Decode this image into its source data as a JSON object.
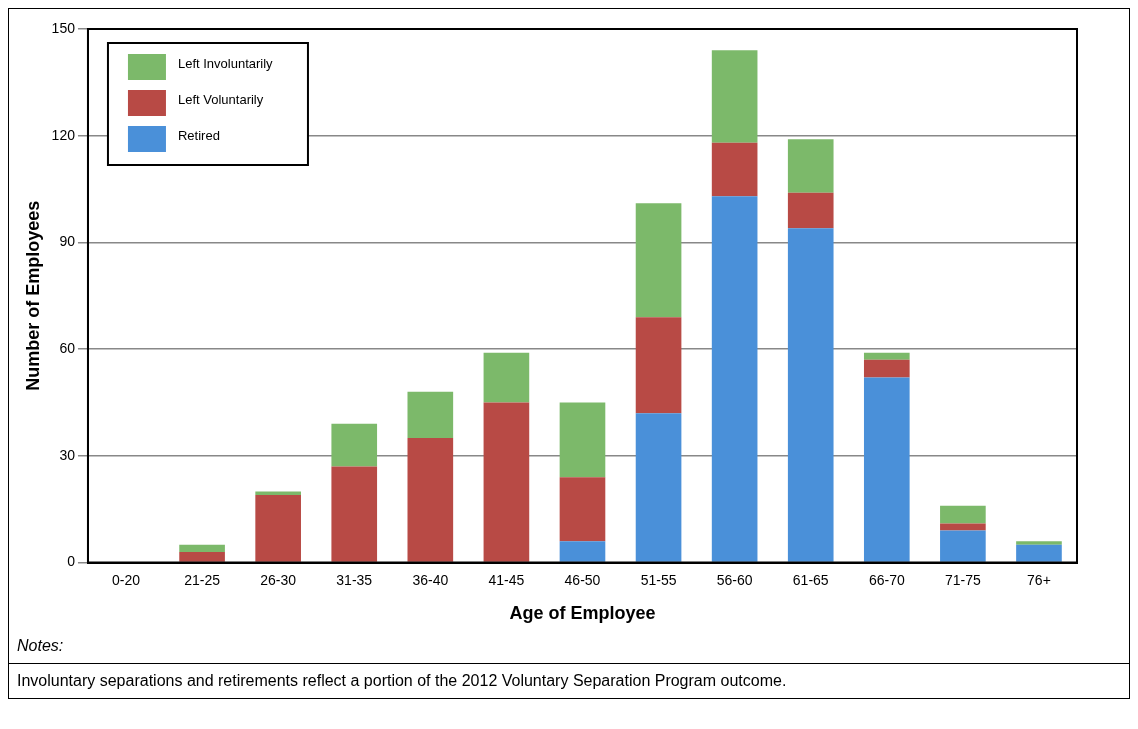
{
  "chart_data": {
    "type": "bar",
    "stacked": true,
    "xlabel": "Age of Employee",
    "ylabel": "Number of Employees",
    "categories": [
      "0-20",
      "21-25",
      "26-30",
      "31-35",
      "36-40",
      "41-45",
      "46-50",
      "51-55",
      "56-60",
      "61-65",
      "66-70",
      "71-75",
      "76+"
    ],
    "series": [
      {
        "name": "Retired",
        "color": "#4a90d9",
        "values": [
          0,
          0,
          0,
          0,
          0,
          0,
          6,
          42,
          103,
          94,
          52,
          9,
          5
        ]
      },
      {
        "name": "Left Voluntarily",
        "color": "#b84a45",
        "values": [
          0,
          3,
          19,
          27,
          35,
          45,
          18,
          27,
          15,
          10,
          5,
          2,
          0
        ]
      },
      {
        "name": "Left Involuntarily",
        "color": "#7cb96a",
        "values": [
          0,
          2,
          1,
          12,
          13,
          14,
          21,
          32,
          26,
          15,
          2,
          5,
          1
        ]
      }
    ],
    "ylim": [
      0,
      150
    ],
    "yticks": [
      0,
      30,
      60,
      90,
      120,
      150
    ],
    "grid": "y",
    "legend": "top left",
    "annotations": [
      "Notes:",
      "Involuntary separations and retirements reflect a portion of the 2012 Voluntary Separation Program outcome."
    ]
  }
}
